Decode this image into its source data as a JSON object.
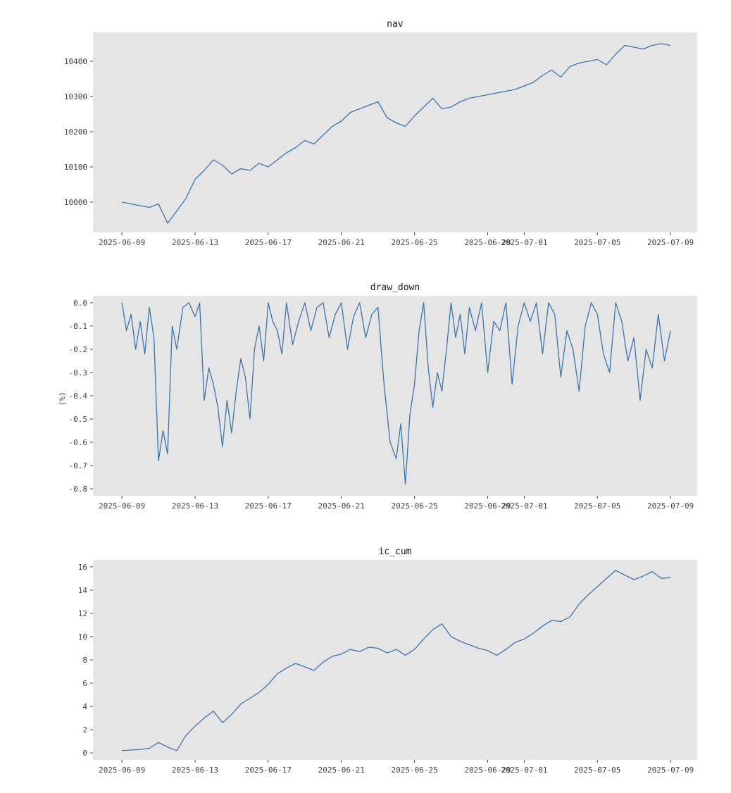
{
  "colors": {
    "background": "#ffffff",
    "plot_bg": "#e5e5e5",
    "line": "#3b75af",
    "text": "#444444"
  },
  "chart_data": [
    {
      "type": "line",
      "title": "nav",
      "xlabel": "",
      "ylabel": "",
      "grid": false,
      "xlim": [
        "2025-06-07T10:00",
        "2025-07-10T11:00"
      ],
      "ylim": [
        9914,
        10482
      ],
      "x_ticks": [
        "2025-06-09",
        "2025-06-13",
        "2025-06-17",
        "2025-06-21",
        "2025-06-25",
        "2025-06-29",
        "2025-07-01",
        "2025-07-05",
        "2025-07-09"
      ],
      "y_ticks": [
        10000,
        10100,
        10200,
        10300,
        10400
      ],
      "series": [
        {
          "x_start": "2025-06-09",
          "x_end": "2025-07-09",
          "x": [
            "2025-06-09",
            "2025-06-10",
            "2025-06-10T12:00",
            "2025-06-11",
            "2025-06-11T12:00",
            "2025-06-12",
            "2025-06-12T12:00",
            "2025-06-13",
            "2025-06-13T12:00",
            "2025-06-14",
            "2025-06-14T12:00",
            "2025-06-15",
            "2025-06-15T12:00",
            "2025-06-16",
            "2025-06-16T12:00",
            "2025-06-17",
            "2025-06-17T12:00",
            "2025-06-18",
            "2025-06-18T12:00",
            "2025-06-19",
            "2025-06-19T12:00",
            "2025-06-20",
            "2025-06-20T12:00",
            "2025-06-21",
            "2025-06-21T12:00",
            "2025-06-22",
            "2025-06-22T12:00",
            "2025-06-23",
            "2025-06-23T12:00",
            "2025-06-24",
            "2025-06-24T12:00",
            "2025-06-25",
            "2025-06-25T12:00",
            "2025-06-26",
            "2025-06-26T12:00",
            "2025-06-27",
            "2025-06-27T12:00",
            "2025-06-28",
            "2025-06-28T12:00",
            "2025-06-29",
            "2025-06-29T12:00",
            "2025-06-30",
            "2025-06-30T12:00",
            "2025-07-01",
            "2025-07-01T12:00",
            "2025-07-02",
            "2025-07-02T12:00",
            "2025-07-03",
            "2025-07-03T12:00",
            "2025-07-04",
            "2025-07-04T12:00",
            "2025-07-05",
            "2025-07-05T12:00",
            "2025-07-06",
            "2025-07-06T12:00",
            "2025-07-07",
            "2025-07-07T12:00",
            "2025-07-08",
            "2025-07-08T12:00",
            "2025-07-09"
          ],
          "values": [
            10000,
            9990,
            9985,
            9995,
            9940,
            9975,
            10010,
            10065,
            10090,
            10120,
            10105,
            10080,
            10095,
            10090,
            10110,
            10100,
            10120,
            10140,
            10155,
            10175,
            10165,
            10190,
            10215,
            10230,
            10255,
            10265,
            10275,
            10285,
            10240,
            10225,
            10215,
            10245,
            10270,
            10295,
            10265,
            10270,
            10285,
            10295,
            10300,
            10305,
            10310,
            10315,
            10320,
            10330,
            10340,
            10360,
            10375,
            10355,
            10385,
            10395,
            10400,
            10405,
            10390,
            10420,
            10445,
            10440,
            10435,
            10445,
            10450,
            10445
          ]
        }
      ]
    },
    {
      "type": "line",
      "title": "draw_down",
      "xlabel": "",
      "ylabel": "(%)",
      "grid": false,
      "xlim": [
        "2025-06-07T10:00",
        "2025-07-10T11:00"
      ],
      "ylim": [
        -0.83,
        0.03
      ],
      "x_ticks": [
        "2025-06-09",
        "2025-06-13",
        "2025-06-17",
        "2025-06-21",
        "2025-06-25",
        "2025-06-29",
        "2025-07-01",
        "2025-07-05",
        "2025-07-09"
      ],
      "y_ticks": [
        "0.0",
        "-0.1",
        "-0.2",
        "-0.3",
        "-0.4",
        "-0.5",
        "-0.6",
        "-0.7",
        "-0.8"
      ],
      "series": [
        {
          "x": [
            "2025-06-09",
            "2025-06-09T06:00",
            "2025-06-09T12:00",
            "2025-06-09T18:00",
            "2025-06-10",
            "2025-06-10T06:00",
            "2025-06-10T12:00",
            "2025-06-10T18:00",
            "2025-06-11",
            "2025-06-11T06:00",
            "2025-06-11T12:00",
            "2025-06-11T18:00",
            "2025-06-12",
            "2025-06-12T08:00",
            "2025-06-12T16:00",
            "2025-06-13",
            "2025-06-13T06:00",
            "2025-06-13T12:00",
            "2025-06-13T18:00",
            "2025-06-14",
            "2025-06-14T06:00",
            "2025-06-14T12:00",
            "2025-06-14T18:00",
            "2025-06-15",
            "2025-06-15T06:00",
            "2025-06-15T12:00",
            "2025-06-15T18:00",
            "2025-06-16",
            "2025-06-16T06:00",
            "2025-06-16T12:00",
            "2025-06-16T18:00",
            "2025-06-17",
            "2025-06-17T06:00",
            "2025-06-17T12:00",
            "2025-06-17T18:00",
            "2025-06-18",
            "2025-06-18T08:00",
            "2025-06-18T16:00",
            "2025-06-19",
            "2025-06-19T08:00",
            "2025-06-19T16:00",
            "2025-06-20",
            "2025-06-20T08:00",
            "2025-06-20T16:00",
            "2025-06-21",
            "2025-06-21T08:00",
            "2025-06-21T16:00",
            "2025-06-22",
            "2025-06-22T08:00",
            "2025-06-22T16:00",
            "2025-06-23",
            "2025-06-23T08:00",
            "2025-06-23T16:00",
            "2025-06-24",
            "2025-06-24T06:00",
            "2025-06-24T12:00",
            "2025-06-24T18:00",
            "2025-06-25",
            "2025-06-25T06:00",
            "2025-06-25T12:00",
            "2025-06-25T18:00",
            "2025-06-26",
            "2025-06-26T06:00",
            "2025-06-26T12:00",
            "2025-06-26T18:00",
            "2025-06-27",
            "2025-06-27T06:00",
            "2025-06-27T12:00",
            "2025-06-27T18:00",
            "2025-06-28",
            "2025-06-28T08:00",
            "2025-06-28T16:00",
            "2025-06-29",
            "2025-06-29T08:00",
            "2025-06-29T16:00",
            "2025-06-30",
            "2025-06-30T08:00",
            "2025-06-30T16:00",
            "2025-07-01",
            "2025-07-01T08:00",
            "2025-07-01T16:00",
            "2025-07-02",
            "2025-07-02T08:00",
            "2025-07-02T16:00",
            "2025-07-03",
            "2025-07-03T08:00",
            "2025-07-03T16:00",
            "2025-07-04",
            "2025-07-04T08:00",
            "2025-07-04T16:00",
            "2025-07-05",
            "2025-07-05T08:00",
            "2025-07-05T16:00",
            "2025-07-06",
            "2025-07-06T08:00",
            "2025-07-06T16:00",
            "2025-07-07",
            "2025-07-07T08:00",
            "2025-07-07T16:00",
            "2025-07-08",
            "2025-07-08T08:00",
            "2025-07-08T16:00",
            "2025-07-09"
          ],
          "values": [
            0.0,
            -0.12,
            -0.05,
            -0.2,
            -0.08,
            -0.22,
            -0.02,
            -0.15,
            -0.68,
            -0.55,
            -0.65,
            -0.1,
            -0.2,
            -0.02,
            0.0,
            -0.06,
            0.0,
            -0.42,
            -0.28,
            -0.35,
            -0.45,
            -0.62,
            -0.42,
            -0.56,
            -0.38,
            -0.24,
            -0.32,
            -0.5,
            -0.2,
            -0.1,
            -0.25,
            0.0,
            -0.08,
            -0.12,
            -0.22,
            0.0,
            -0.18,
            -0.08,
            0.0,
            -0.12,
            -0.02,
            0.0,
            -0.15,
            -0.05,
            0.0,
            -0.2,
            -0.06,
            0.0,
            -0.15,
            -0.05,
            -0.02,
            -0.35,
            -0.6,
            -0.67,
            -0.52,
            -0.78,
            -0.48,
            -0.35,
            -0.12,
            0.0,
            -0.28,
            -0.45,
            -0.3,
            -0.38,
            -0.2,
            0.0,
            -0.15,
            -0.05,
            -0.22,
            -0.02,
            -0.12,
            0.0,
            -0.3,
            -0.08,
            -0.12,
            0.0,
            -0.35,
            -0.1,
            0.0,
            -0.08,
            0.0,
            -0.22,
            0.0,
            -0.05,
            -0.32,
            -0.12,
            -0.2,
            -0.38,
            -0.1,
            0.0,
            -0.05,
            -0.22,
            -0.3,
            0.0,
            -0.08,
            -0.25,
            -0.15,
            -0.42,
            -0.2,
            -0.28,
            -0.05,
            -0.25,
            -0.12
          ]
        }
      ]
    },
    {
      "type": "line",
      "title": "ic_cum",
      "xlabel": "",
      "ylabel": "",
      "grid": false,
      "xlim": [
        "2025-06-07T10:00",
        "2025-07-10T11:00"
      ],
      "ylim": [
        -0.6,
        16.6
      ],
      "x_ticks": [
        "2025-06-09",
        "2025-06-13",
        "2025-06-17",
        "2025-06-21",
        "2025-06-25",
        "2025-06-29",
        "2025-07-01",
        "2025-07-05",
        "2025-07-09"
      ],
      "y_ticks": [
        0,
        2,
        4,
        6,
        8,
        10,
        12,
        14,
        16
      ],
      "series": [
        {
          "x": [
            "2025-06-09",
            "2025-06-10",
            "2025-06-10T12:00",
            "2025-06-11",
            "2025-06-11T12:00",
            "2025-06-12",
            "2025-06-12T12:00",
            "2025-06-13",
            "2025-06-13T12:00",
            "2025-06-14",
            "2025-06-14T12:00",
            "2025-06-15",
            "2025-06-15T12:00",
            "2025-06-16",
            "2025-06-16T12:00",
            "2025-06-17",
            "2025-06-17T12:00",
            "2025-06-18",
            "2025-06-18T12:00",
            "2025-06-19",
            "2025-06-19T12:00",
            "2025-06-20",
            "2025-06-20T12:00",
            "2025-06-21",
            "2025-06-21T12:00",
            "2025-06-22",
            "2025-06-22T12:00",
            "2025-06-23",
            "2025-06-23T12:00",
            "2025-06-24",
            "2025-06-24T12:00",
            "2025-06-25",
            "2025-06-25T12:00",
            "2025-06-26",
            "2025-06-26T12:00",
            "2025-06-27",
            "2025-06-27T12:00",
            "2025-06-28",
            "2025-06-28T12:00",
            "2025-06-29",
            "2025-06-29T12:00",
            "2025-06-30",
            "2025-06-30T12:00",
            "2025-07-01",
            "2025-07-01T12:00",
            "2025-07-02",
            "2025-07-02T12:00",
            "2025-07-03",
            "2025-07-03T12:00",
            "2025-07-04",
            "2025-07-04T12:00",
            "2025-07-05",
            "2025-07-05T12:00",
            "2025-07-06",
            "2025-07-06T12:00",
            "2025-07-07",
            "2025-07-07T12:00",
            "2025-07-08",
            "2025-07-08T12:00",
            "2025-07-09"
          ],
          "values": [
            0.2,
            0.3,
            0.4,
            0.9,
            0.5,
            0.2,
            1.5,
            2.3,
            3.0,
            3.6,
            2.6,
            3.3,
            4.2,
            4.7,
            5.2,
            5.9,
            6.8,
            7.3,
            7.7,
            7.4,
            7.1,
            7.8,
            8.3,
            8.5,
            8.9,
            8.7,
            9.1,
            9.0,
            8.6,
            8.9,
            8.4,
            8.9,
            9.8,
            10.6,
            11.1,
            10.0,
            9.6,
            9.3,
            9.0,
            8.8,
            8.4,
            8.9,
            9.5,
            9.8,
            10.3,
            10.9,
            11.4,
            11.3,
            11.7,
            12.8,
            13.6,
            14.3,
            15.0,
            15.7,
            15.3,
            14.9,
            15.2,
            15.6,
            15.0,
            15.1
          ]
        }
      ]
    }
  ]
}
